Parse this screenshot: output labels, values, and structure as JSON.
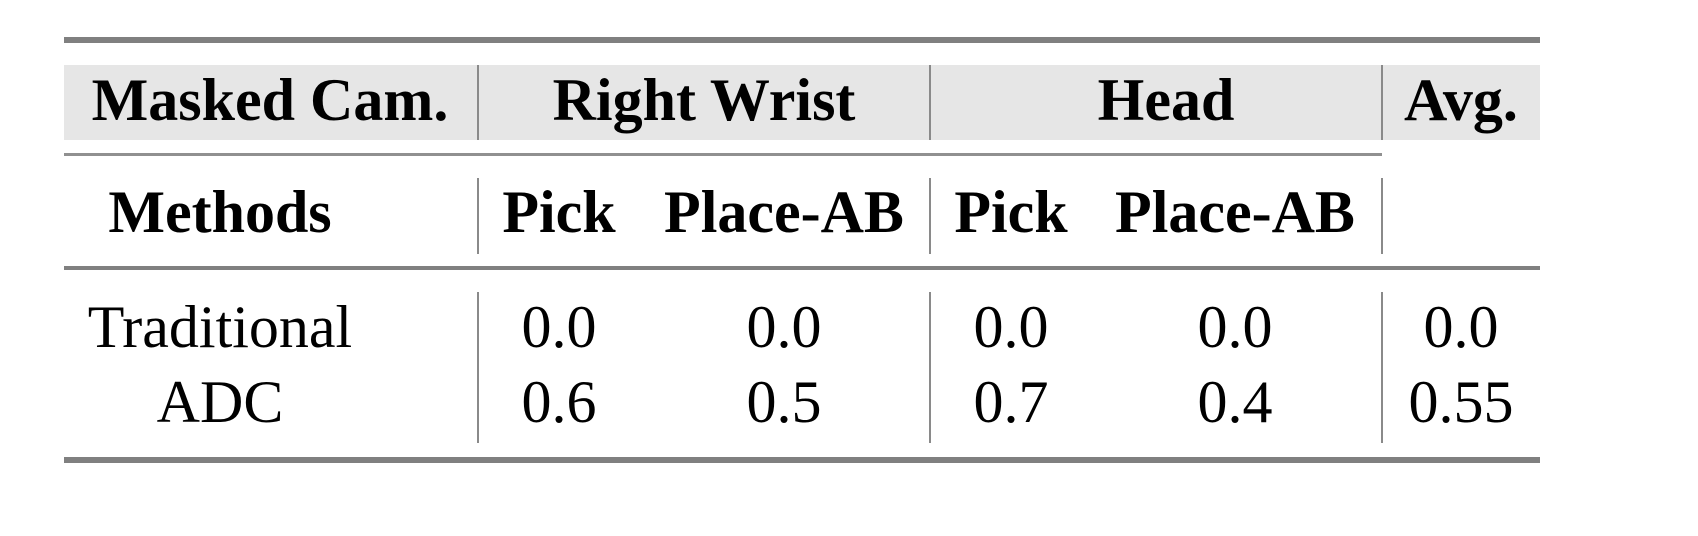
{
  "table": {
    "header_row1": {
      "masked_cam": "Masked Cam.",
      "right_wrist": "Right Wrist",
      "head": "Head",
      "avg": "Avg."
    },
    "header_row2": {
      "methods": "Methods",
      "rw_pick": "Pick",
      "rw_place": "Place-AB",
      "h_pick": "Pick",
      "h_place": "Place-AB"
    },
    "rows": [
      {
        "method": "Traditional",
        "rw_pick": "0.0",
        "rw_place": "0.0",
        "h_pick": "0.0",
        "h_place": "0.0",
        "avg": "0.0"
      },
      {
        "method": "ADC",
        "rw_pick": "0.6",
        "rw_place": "0.5",
        "h_pick": "0.7",
        "h_place": "0.4",
        "avg": "0.55"
      }
    ],
    "header_bg": "#e6e6e6",
    "rule_color": "#808080"
  }
}
